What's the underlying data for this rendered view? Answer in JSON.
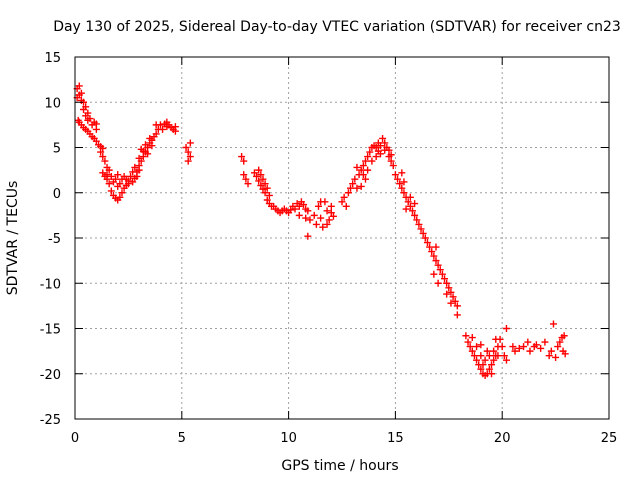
{
  "chart_data": {
    "type": "scatter",
    "title": "Day 130 of 2025, Sidereal Day-to-day VTEC variation (SDTVAR) for receiver cn23",
    "xlabel": "GPS time / hours",
    "ylabel": "SDTVAR / TECUs",
    "xlim": [
      0,
      25
    ],
    "ylim": [
      -25,
      15
    ],
    "xticks": [
      0,
      5,
      10,
      15,
      20,
      25
    ],
    "yticks": [
      -25,
      -20,
      -15,
      -10,
      -5,
      0,
      5,
      10,
      15
    ],
    "grid": true,
    "marker": "+",
    "colors": {
      "series": "#ff0000",
      "grid": "#a0a0a0",
      "axis": "#000000"
    },
    "series": [
      {
        "name": "SDTVAR",
        "points": [
          [
            0.1,
            11.5
          ],
          [
            0.2,
            11.8
          ],
          [
            0.2,
            10.8
          ],
          [
            0.3,
            11.0
          ],
          [
            0.3,
            10.2
          ],
          [
            0.4,
            10.0
          ],
          [
            0.4,
            9.2
          ],
          [
            0.5,
            9.5
          ],
          [
            0.5,
            8.5
          ],
          [
            0.6,
            8.8
          ],
          [
            0.6,
            8.0
          ],
          [
            0.7,
            8.2
          ],
          [
            0.8,
            7.5
          ],
          [
            0.9,
            7.8
          ],
          [
            1.0,
            7.0
          ],
          [
            1.0,
            7.6
          ],
          [
            0.1,
            10.5
          ],
          [
            0.15,
            8.0
          ],
          [
            0.2,
            7.8
          ],
          [
            0.3,
            7.5
          ],
          [
            0.4,
            7.2
          ],
          [
            0.5,
            7.0
          ],
          [
            0.6,
            6.8
          ],
          [
            0.7,
            6.5
          ],
          [
            0.8,
            6.2
          ],
          [
            0.9,
            6.0
          ],
          [
            1.0,
            5.7
          ],
          [
            1.1,
            5.3
          ],
          [
            1.2,
            5.1
          ],
          [
            1.3,
            4.9
          ],
          [
            1.2,
            4.5
          ],
          [
            1.3,
            4.0
          ],
          [
            1.4,
            3.5
          ],
          [
            1.5,
            2.8
          ],
          [
            1.5,
            1.5
          ],
          [
            1.6,
            1.0
          ],
          [
            1.7,
            0.2
          ],
          [
            1.8,
            -0.3
          ],
          [
            1.9,
            -0.6
          ],
          [
            2.0,
            -0.8
          ],
          [
            2.1,
            -0.5
          ],
          [
            2.2,
            0.0
          ],
          [
            2.3,
            0.5
          ],
          [
            1.3,
            2.2
          ],
          [
            1.4,
            1.8
          ],
          [
            1.5,
            2.0
          ],
          [
            1.6,
            2.5
          ],
          [
            1.7,
            1.8
          ],
          [
            1.8,
            1.2
          ],
          [
            1.9,
            1.5
          ],
          [
            2.0,
            2.0
          ],
          [
            2.0,
            0.7
          ],
          [
            2.1,
            1.0
          ],
          [
            2.2,
            1.5
          ],
          [
            2.3,
            1.8
          ],
          [
            2.4,
            1.5
          ],
          [
            2.5,
            1.0
          ],
          [
            2.4,
            0.8
          ],
          [
            2.5,
            1.3
          ],
          [
            2.6,
            1.8
          ],
          [
            2.7,
            2.3
          ],
          [
            2.8,
            2.8
          ],
          [
            2.9,
            2.3
          ],
          [
            3.0,
            3.0
          ],
          [
            2.7,
            1.2
          ],
          [
            2.8,
            1.6
          ],
          [
            2.9,
            1.8
          ],
          [
            3.0,
            2.5
          ],
          [
            3.1,
            3.5
          ],
          [
            3.2,
            4.0
          ],
          [
            3.3,
            4.5
          ],
          [
            3.4,
            5.0
          ],
          [
            3.5,
            5.5
          ],
          [
            3.6,
            5.8
          ],
          [
            3.5,
            6.0
          ],
          [
            3.3,
            5.3
          ],
          [
            3.2,
            4.6
          ],
          [
            3.0,
            3.8
          ],
          [
            3.1,
            4.8
          ],
          [
            3.4,
            4.3
          ],
          [
            3.6,
            5.2
          ],
          [
            3.7,
            6.2
          ],
          [
            3.8,
            6.5
          ],
          [
            3.8,
            7.5
          ],
          [
            3.9,
            7.0
          ],
          [
            4.0,
            7.5
          ],
          [
            4.1,
            7.0
          ],
          [
            4.2,
            7.6
          ],
          [
            4.3,
            7.3
          ],
          [
            4.3,
            7.8
          ],
          [
            4.4,
            7.5
          ],
          [
            4.5,
            7.2
          ],
          [
            4.6,
            7.0
          ],
          [
            4.7,
            6.8
          ],
          [
            4.7,
            7.3
          ],
          [
            5.2,
            5.0
          ],
          [
            5.3,
            4.5
          ],
          [
            5.4,
            4.0
          ],
          [
            5.3,
            3.5
          ],
          [
            5.4,
            5.5
          ],
          [
            7.8,
            4.0
          ],
          [
            7.9,
            3.5
          ],
          [
            7.9,
            2.0
          ],
          [
            8.0,
            1.5
          ],
          [
            8.1,
            1.0
          ],
          [
            8.4,
            2.2
          ],
          [
            8.5,
            1.8
          ],
          [
            8.6,
            2.5
          ],
          [
            8.7,
            2.0
          ],
          [
            8.8,
            1.5
          ],
          [
            8.9,
            1.0
          ],
          [
            8.6,
            1.3
          ],
          [
            8.7,
            0.8
          ],
          [
            8.8,
            0.4
          ],
          [
            8.9,
            0.0
          ],
          [
            9.0,
            0.5
          ],
          [
            9.1,
            -0.3
          ],
          [
            9.0,
            -0.8
          ],
          [
            9.1,
            -1.2
          ],
          [
            9.2,
            -1.5
          ],
          [
            9.3,
            -1.5
          ],
          [
            9.4,
            -1.8
          ],
          [
            9.5,
            -2.0
          ],
          [
            9.6,
            -2.2
          ],
          [
            9.7,
            -2.0
          ],
          [
            9.8,
            -1.8
          ],
          [
            9.9,
            -2.0
          ],
          [
            10.0,
            -2.2
          ],
          [
            10.1,
            -1.9
          ],
          [
            10.2,
            -1.5
          ],
          [
            10.3,
            -1.8
          ],
          [
            10.4,
            -1.2
          ],
          [
            10.5,
            -1.5
          ],
          [
            10.6,
            -1.0
          ],
          [
            10.7,
            -1.3
          ],
          [
            10.8,
            -1.8
          ],
          [
            10.5,
            -2.5
          ],
          [
            10.8,
            -2.8
          ],
          [
            10.9,
            -2.0
          ],
          [
            11.0,
            -3.0
          ],
          [
            10.9,
            -4.8
          ],
          [
            11.2,
            -2.5
          ],
          [
            11.3,
            -3.5
          ],
          [
            11.4,
            -1.5
          ],
          [
            11.5,
            -1.0
          ],
          [
            11.5,
            -2.8
          ],
          [
            11.6,
            -3.8
          ],
          [
            11.7,
            -1.0
          ],
          [
            11.8,
            -2.0
          ],
          [
            11.9,
            -3.0
          ],
          [
            12.0,
            -2.2
          ],
          [
            12.0,
            -1.5
          ],
          [
            11.8,
            -3.5
          ],
          [
            12.1,
            -2.6
          ],
          [
            12.5,
            -1.0
          ],
          [
            12.6,
            -0.5
          ],
          [
            12.7,
            -1.5
          ],
          [
            12.8,
            0.0
          ],
          [
            12.9,
            0.5
          ],
          [
            13.0,
            1.0
          ],
          [
            13.1,
            1.5
          ],
          [
            13.2,
            0.5
          ],
          [
            13.3,
            2.0
          ],
          [
            13.4,
            2.5
          ],
          [
            13.5,
            3.0
          ],
          [
            13.6,
            3.5
          ],
          [
            13.7,
            4.0
          ],
          [
            13.8,
            4.5
          ],
          [
            13.9,
            5.0
          ],
          [
            14.0,
            5.2
          ],
          [
            14.1,
            5.0
          ],
          [
            14.2,
            5.5
          ],
          [
            14.3,
            5.2
          ],
          [
            14.4,
            6.0
          ],
          [
            14.5,
            5.5
          ],
          [
            14.6,
            5.0
          ],
          [
            14.7,
            4.0
          ],
          [
            14.8,
            3.5
          ],
          [
            14.9,
            3.0
          ],
          [
            14.7,
            4.7
          ],
          [
            14.8,
            4.2
          ],
          [
            14.5,
            4.7
          ],
          [
            14.2,
            4.6
          ],
          [
            13.2,
            2.8
          ],
          [
            13.5,
            2.0
          ],
          [
            13.4,
            0.7
          ],
          [
            13.6,
            1.5
          ],
          [
            13.7,
            2.5
          ],
          [
            13.9,
            3.5
          ],
          [
            14.1,
            4.0
          ],
          [
            14.3,
            4.3
          ],
          [
            15.0,
            2.0
          ],
          [
            15.1,
            1.5
          ],
          [
            15.2,
            1.0
          ],
          [
            15.3,
            0.5
          ],
          [
            15.4,
            0.0
          ],
          [
            15.5,
            -0.5
          ],
          [
            15.6,
            -1.0
          ],
          [
            15.7,
            -1.5
          ],
          [
            15.8,
            -2.0
          ],
          [
            15.9,
            -2.5
          ],
          [
            16.0,
            -3.0
          ],
          [
            15.5,
            -1.8
          ],
          [
            15.7,
            -0.5
          ],
          [
            15.9,
            -1.2
          ],
          [
            15.4,
            1.2
          ],
          [
            15.3,
            2.2
          ],
          [
            16.1,
            -3.5
          ],
          [
            16.2,
            -4.0
          ],
          [
            16.3,
            -4.5
          ],
          [
            16.4,
            -5.0
          ],
          [
            16.5,
            -5.5
          ],
          [
            16.6,
            -6.0
          ],
          [
            16.7,
            -6.5
          ],
          [
            16.8,
            -7.0
          ],
          [
            16.9,
            -7.5
          ],
          [
            17.0,
            -8.0
          ],
          [
            16.9,
            -6.0
          ],
          [
            16.8,
            -9.0
          ],
          [
            17.0,
            -10.0
          ],
          [
            17.1,
            -8.5
          ],
          [
            17.2,
            -9.0
          ],
          [
            17.3,
            -9.5
          ],
          [
            17.4,
            -10.0
          ],
          [
            17.5,
            -10.5
          ],
          [
            17.6,
            -11.0
          ],
          [
            17.7,
            -11.5
          ],
          [
            17.8,
            -12.0
          ],
          [
            17.9,
            -12.5
          ],
          [
            17.9,
            -13.5
          ],
          [
            17.4,
            -11.2
          ],
          [
            17.6,
            -12.2
          ],
          [
            18.3,
            -15.8
          ],
          [
            18.4,
            -16.5
          ],
          [
            18.5,
            -17.0
          ],
          [
            18.6,
            -17.5
          ],
          [
            18.7,
            -18.0
          ],
          [
            18.8,
            -18.5
          ],
          [
            18.9,
            -19.0
          ],
          [
            19.0,
            -19.5
          ],
          [
            19.1,
            -20.0
          ],
          [
            19.2,
            -20.2
          ],
          [
            19.3,
            -20.0
          ],
          [
            19.4,
            -19.5
          ],
          [
            19.5,
            -19.0
          ],
          [
            19.6,
            -18.5
          ],
          [
            19.7,
            -18.0
          ],
          [
            19.8,
            -17.0
          ],
          [
            19.9,
            -16.2
          ],
          [
            18.6,
            -16.0
          ],
          [
            18.8,
            -17.0
          ],
          [
            19.0,
            -18.0
          ],
          [
            19.2,
            -18.5
          ],
          [
            19.4,
            -18.0
          ],
          [
            19.6,
            -17.5
          ],
          [
            19.8,
            -18.0
          ],
          [
            19.0,
            -16.8
          ],
          [
            19.3,
            -17.5
          ],
          [
            19.7,
            -16.2
          ],
          [
            19.1,
            -19.0
          ],
          [
            19.5,
            -20.0
          ],
          [
            20.0,
            -17.0
          ],
          [
            20.1,
            -18.0
          ],
          [
            20.2,
            -15.0
          ],
          [
            20.2,
            -18.5
          ],
          [
            20.5,
            -17.0
          ],
          [
            20.6,
            -17.5
          ],
          [
            20.8,
            -17.2
          ],
          [
            21.0,
            -17.0
          ],
          [
            21.2,
            -16.5
          ],
          [
            21.3,
            -17.5
          ],
          [
            21.5,
            -17.0
          ],
          [
            21.6,
            -16.8
          ],
          [
            21.8,
            -17.2
          ],
          [
            22.0,
            -16.5
          ],
          [
            22.2,
            -18.0
          ],
          [
            22.3,
            -17.5
          ],
          [
            22.4,
            -14.5
          ],
          [
            22.5,
            -18.2
          ],
          [
            22.6,
            -17.0
          ],
          [
            22.7,
            -16.5
          ],
          [
            22.8,
            -16.0
          ],
          [
            22.9,
            -15.8
          ],
          [
            22.85,
            -17.5
          ],
          [
            22.95,
            -17.8
          ]
        ]
      }
    ]
  }
}
